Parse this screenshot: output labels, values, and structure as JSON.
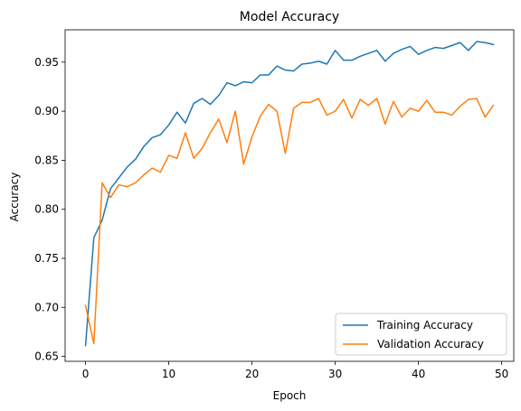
{
  "chart_data": {
    "type": "line",
    "title": "Model Accuracy",
    "xlabel": "Epoch",
    "ylabel": "Accuracy",
    "xlim": [
      -2.45,
      51.45
    ],
    "ylim": [
      0.645,
      0.983
    ],
    "xticks": [
      0,
      10,
      20,
      30,
      40,
      50
    ],
    "yticks": [
      0.65,
      0.7,
      0.75,
      0.8,
      0.85,
      0.9,
      0.95
    ],
    "ytick_labels": [
      "0.65",
      "0.70",
      "0.75",
      "0.80",
      "0.85",
      "0.90",
      "0.95"
    ],
    "grid": false,
    "legend_position": "lower-right",
    "x": [
      0,
      1,
      2,
      3,
      4,
      5,
      6,
      7,
      8,
      9,
      10,
      11,
      12,
      13,
      14,
      15,
      16,
      17,
      18,
      19,
      20,
      21,
      22,
      23,
      24,
      25,
      26,
      27,
      28,
      29,
      30,
      31,
      32,
      33,
      34,
      35,
      36,
      37,
      38,
      39,
      40,
      41,
      42,
      43,
      44,
      45,
      46,
      47,
      48,
      49
    ],
    "series": [
      {
        "name": "Training Accuracy",
        "color": "#1f77b4",
        "values": [
          0.661,
          0.771,
          0.789,
          0.821,
          0.832,
          0.843,
          0.851,
          0.864,
          0.873,
          0.876,
          0.886,
          0.899,
          0.888,
          0.908,
          0.913,
          0.907,
          0.916,
          0.929,
          0.926,
          0.93,
          0.929,
          0.937,
          0.937,
          0.946,
          0.942,
          0.941,
          0.948,
          0.949,
          0.951,
          0.948,
          0.962,
          0.952,
          0.952,
          0.956,
          0.959,
          0.962,
          0.951,
          0.959,
          0.963,
          0.966,
          0.958,
          0.962,
          0.965,
          0.964,
          0.967,
          0.97,
          0.962,
          0.971,
          0.97,
          0.968
        ]
      },
      {
        "name": "Validation Accuracy",
        "color": "#ff7f0e",
        "values": [
          0.702,
          0.663,
          0.827,
          0.812,
          0.825,
          0.823,
          0.827,
          0.835,
          0.842,
          0.838,
          0.855,
          0.852,
          0.878,
          0.852,
          0.862,
          0.878,
          0.892,
          0.868,
          0.9,
          0.846,
          0.874,
          0.895,
          0.907,
          0.9,
          0.857,
          0.903,
          0.909,
          0.909,
          0.913,
          0.896,
          0.9,
          0.912,
          0.893,
          0.912,
          0.906,
          0.913,
          0.887,
          0.91,
          0.894,
          0.903,
          0.9,
          0.911,
          0.899,
          0.899,
          0.896,
          0.905,
          0.912,
          0.913,
          0.894,
          0.906
        ]
      }
    ]
  }
}
